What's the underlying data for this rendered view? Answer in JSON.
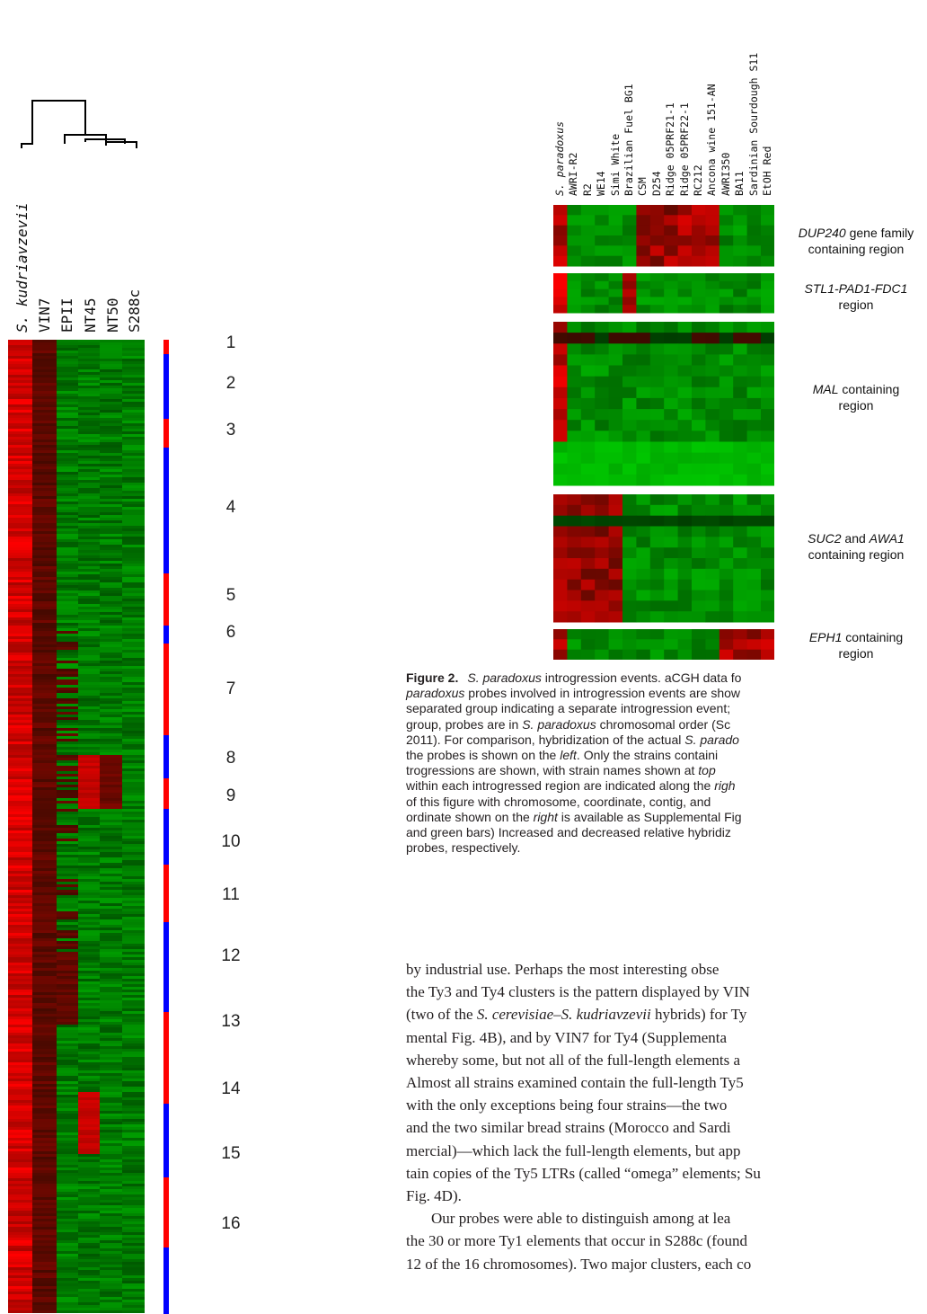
{
  "left_figure": {
    "strain_labels": [
      "S. kudriavzevii",
      "VIN7",
      "EPII",
      "NT45",
      "NT50",
      "S288c"
    ],
    "chromosome_numbers": [
      "1",
      "2",
      "3",
      "4",
      "5",
      "6",
      "7",
      "8",
      "9",
      "10",
      "11",
      "12",
      "13",
      "14",
      "15",
      "16"
    ],
    "colors": {
      "high": "#ff0000",
      "low": "#00aa00",
      "bar_red": "#ff0000",
      "bar_blue": "#0000ff"
    }
  },
  "right_figure": {
    "strain_labels": [
      "S. paradoxus",
      "AWRI-R2",
      "R2",
      "WE14",
      "Simi White",
      "Brazilian Fuel BG1",
      "CSM",
      "D254",
      "Ridge 05PRF21-1",
      "Ridge 05PRF22-1",
      "RC212",
      "Ancona wine 151-AN",
      "AWRI350",
      "BA11",
      "Sardinian Sourdough S11",
      "EtOH Red"
    ],
    "regions": [
      {
        "italic": "DUP240",
        "rest": " gene family",
        "line2": "containing region"
      },
      {
        "italic": "STL1-PAD1-FDC1",
        "rest": "",
        "line2": "region"
      },
      {
        "italic": "MAL",
        "rest": " containing",
        "line2": "region"
      },
      {
        "italic": "SUC2",
        "rest": " and ",
        "italic2": "AWA1",
        "line2": "containing region"
      },
      {
        "italic": "EPH1",
        "rest": " containing",
        "line2": "region"
      }
    ]
  },
  "caption": {
    "label": "Figure 2.",
    "p1": " introgression events. aCGH data fo",
    "p1_italic": "S. paradoxus",
    "line2_italic": "paradoxus",
    "line2": " probes involved in introgression events are show",
    "line3": "separated group indicating a separate introgression event;",
    "line4a": "group, probes are in ",
    "line4_italic": "S. paradoxus",
    "line4b": " chromosomal order (Sc",
    "line5a": "2011). For comparison, hybridization of the actual ",
    "line5_italic": "S. parado",
    "line6a": "the probes is shown on the ",
    "line6_italic": "left",
    "line6b": ". Only the strains containi",
    "line7a": "trogressions are shown, with strain names shown at ",
    "line7_italic": "top",
    "line8a": "within each introgressed region are indicated along the ",
    "line8_italic": "righ",
    "line9": "of this figure with chromosome, coordinate, contig, and",
    "line10a": "ordinate shown on the ",
    "line10_italic": "right",
    "line10b": " is available as Supplemental Fig",
    "line11": "and green bars) Increased and decreased relative hybridiz",
    "line12": "probes, respectively."
  },
  "body": {
    "l1": "by industrial use. Perhaps the most interesting obse",
    "l2": "the Ty3 and Ty4 clusters is the pattern displayed by VIN",
    "l3a": "(two of the ",
    "l3_i1": "S. cerevisiae",
    "l3_dash": "–",
    "l3_i2": "S. kudriavzevii",
    "l3b": " hybrids) for Ty",
    "l4": "mental Fig. 4B), and by VIN7 for Ty4 (Supplementa",
    "l5": "whereby some, but not all of the full-length elements a",
    "l6": "Almost all strains examined contain the full-length Ty5",
    "l7": "with the only exceptions being four strains—the two",
    "l8": "and the two similar bread strains (Morocco and Sardi",
    "l9": "mercial)—which lack the full-length elements, but app",
    "l10": "tain copies of the Ty5 LTRs (called “omega” elements; Su",
    "l11": "Fig. 4D).",
    "l12": "Our probes were able to distinguish among at lea",
    "l13": "the 30 or more Ty1 elements that occur in S288c (found",
    "l14": "12 of the 16 chromosomes). Two major clusters, each co"
  }
}
